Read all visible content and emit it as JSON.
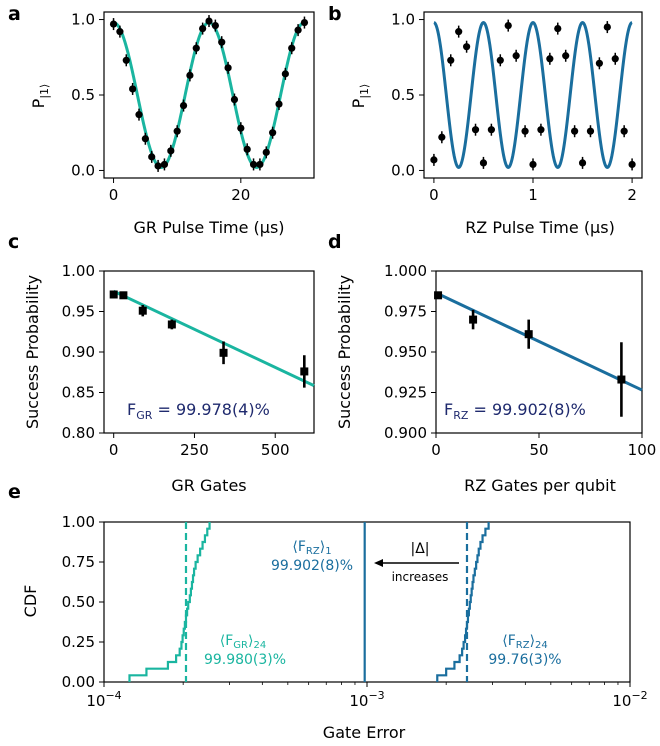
{
  "chart_data": [
    {
      "panel": "a",
      "type": "scatter",
      "xlabel": "GR Pulse Time (μs)",
      "ylabel": "P|1⟩",
      "xlim": [
        -1.5,
        31.5
      ],
      "ylim": [
        -0.05,
        1.05
      ],
      "xticks": [
        0,
        20
      ],
      "yticks": [
        0.0,
        0.5,
        1.0
      ],
      "ytick_labels": [
        "0.0",
        "0.5",
        "1.0"
      ],
      "fit_color": "#1ab5a0",
      "fit_period": 15.0,
      "data": {
        "x": [
          0,
          1,
          2,
          3,
          4,
          5,
          6,
          7,
          8,
          9,
          10,
          11,
          12,
          13,
          14,
          15,
          16,
          17,
          18,
          19,
          20,
          21,
          22,
          23,
          24,
          25,
          26,
          27,
          28,
          29,
          30
        ],
        "y": [
          0.97,
          0.92,
          0.73,
          0.54,
          0.37,
          0.21,
          0.09,
          0.03,
          0.04,
          0.13,
          0.26,
          0.43,
          0.63,
          0.81,
          0.94,
          0.99,
          0.96,
          0.85,
          0.68,
          0.47,
          0.28,
          0.14,
          0.04,
          0.04,
          0.12,
          0.25,
          0.44,
          0.64,
          0.81,
          0.93,
          0.98
        ]
      }
    },
    {
      "panel": "b",
      "type": "scatter",
      "xlabel": "RZ Pulse Time (μs)",
      "ylabel": "P|1⟩",
      "xlim": [
        -0.1,
        2.1
      ],
      "ylim": [
        -0.05,
        1.05
      ],
      "xticks": [
        0,
        1,
        2
      ],
      "yticks": [
        0.0,
        0.5,
        1.0
      ],
      "ytick_labels": [
        "0.0",
        "0.5",
        "1.0"
      ],
      "fit_color": "#1a6e9e",
      "fit_period": 0.5,
      "data": {
        "x": [
          0.0,
          0.08,
          0.17,
          0.25,
          0.33,
          0.42,
          0.5,
          0.58,
          0.67,
          0.75,
          0.83,
          0.92,
          1.0,
          1.08,
          1.17,
          1.25,
          1.33,
          1.42,
          1.5,
          1.58,
          1.67,
          1.75,
          1.83,
          1.92,
          2.0
        ],
        "y": [
          0.07,
          0.22,
          0.73,
          0.92,
          0.82,
          0.27,
          0.05,
          0.27,
          0.73,
          0.96,
          0.76,
          0.26,
          0.04,
          0.27,
          0.74,
          0.94,
          0.76,
          0.26,
          0.05,
          0.26,
          0.71,
          0.95,
          0.74,
          0.26,
          0.04
        ]
      }
    },
    {
      "panel": "c",
      "type": "scatter",
      "xlabel": "GR Gates",
      "ylabel": "Success Probability",
      "xlim": [
        -30,
        620
      ],
      "ylim": [
        0.8,
        1.0
      ],
      "xticks": [
        0,
        250,
        500
      ],
      "yticks": [
        0.8,
        0.85,
        0.9,
        0.95,
        1.0
      ],
      "ytick_labels": [
        "0.80",
        "0.85",
        "0.90",
        "0.95",
        "1.00"
      ],
      "fit_color": "#1ab5a0",
      "fit": {
        "y0": 0.975,
        "slope": -0.000188
      },
      "annotation": "F_GR = 99.978(4)%",
      "data": {
        "x": [
          0,
          30,
          90,
          180,
          340,
          590
        ],
        "y": [
          0.971,
          0.97,
          0.951,
          0.934,
          0.899,
          0.876
        ],
        "err": [
          0.004,
          0.002,
          0.007,
          0.006,
          0.014,
          0.02
        ]
      }
    },
    {
      "panel": "d",
      "type": "scatter",
      "xlabel": "RZ Gates per qubit",
      "ylabel": "Success Probability",
      "xlim": [
        0,
        100
      ],
      "ylim": [
        0.9,
        1.0
      ],
      "xticks": [
        0,
        50,
        100
      ],
      "yticks": [
        0.9,
        0.925,
        0.95,
        0.975,
        1.0
      ],
      "ytick_labels": [
        "0.900",
        "0.925",
        "0.950",
        "0.975",
        "1.000"
      ],
      "fit_color": "#1a6e9e",
      "fit": {
        "y0": 0.9865,
        "slope": -0.0006
      },
      "annotation": "F_RZ = 99.902(8)%",
      "data": {
        "x": [
          1,
          18,
          45,
          90
        ],
        "y": [
          0.985,
          0.97,
          0.961,
          0.933
        ],
        "err": [
          0.002,
          0.006,
          0.009,
          0.023
        ]
      }
    },
    {
      "panel": "e",
      "type": "line",
      "xlabel": "Gate Error",
      "ylabel": "CDF",
      "xscale": "log",
      "xlim": [
        0.0001,
        0.01
      ],
      "ylim": [
        0.0,
        1.0
      ],
      "yticks": [
        0.0,
        0.25,
        0.5,
        0.75,
        1.0
      ],
      "ytick_labels": [
        "0.00",
        "0.25",
        "0.50",
        "0.75",
        "1.00"
      ],
      "series": [
        {
          "name": "⟨F_GR⟩24",
          "value_label": "99.980(3)%",
          "color": "#1ab5a0",
          "mean": 0.000205,
          "samples": [
            0.000125,
            0.000145,
            0.000175,
            0.000188,
            0.000194,
            0.000197,
            0.000199,
            0.000201,
            0.000203,
            0.000205,
            0.000207,
            0.000209,
            0.000212,
            0.000214,
            0.000216,
            0.000218,
            0.00022,
            0.000223,
            0.000227,
            0.000232,
            0.000237,
            0.000242,
            0.000247,
            0.000252
          ]
        },
        {
          "name": "⟨F_RZ⟩24",
          "value_label": "99.76(3)%",
          "color": "#1a6e9e",
          "mean": 0.0024,
          "samples": [
            0.00185,
            0.002,
            0.00215,
            0.00225,
            0.0023,
            0.00233,
            0.00236,
            0.00238,
            0.0024,
            0.00242,
            0.00244,
            0.00246,
            0.00248,
            0.0025,
            0.00252,
            0.00254,
            0.00257,
            0.0026,
            0.00263,
            0.00266,
            0.0027,
            0.00275,
            0.00282,
            0.0029
          ]
        }
      ],
      "single_line": {
        "name": "⟨F_RZ⟩1",
        "value_label": "99.902(8)%",
        "color": "#1a6e9e",
        "x": 0.00098
      },
      "arrow_label_top": "|Δ|",
      "arrow_label_bottom": "increases"
    }
  ],
  "labels": {
    "a": "a",
    "b": "b",
    "c": "c",
    "d": "d",
    "e": "e",
    "ylabel_p_main": "P",
    "ylabel_p_sub": "|1⟩",
    "fid_c_main": "F",
    "fid_c_sub": "GR",
    "fid_c_val": " = 99.978(4)%",
    "fid_d_main": "F",
    "fid_d_sub": "RZ",
    "fid_d_val": " = 99.902(8)%",
    "e_rz1_open": "⟨F",
    "e_rz1_sub": "RZ",
    "e_rz1_close": "⟩",
    "e_rz1_idx": "1",
    "e_rz1_val": "99.902(8)%",
    "e_gr_open": "⟨F",
    "e_gr_sub": "GR",
    "e_gr_close": "⟩",
    "e_gr_idx": "24",
    "e_gr_val": "99.980(3)%",
    "e_rz_open": "⟨F",
    "e_rz_sub": "RZ",
    "e_rz_close": "⟩",
    "e_rz_idx": "24",
    "e_rz_val": "99.76(3)%",
    "e_arrow_top": "|Δ|",
    "e_arrow_bottom": "increases",
    "e_xtick_base": "10",
    "e_xtick_exp": [
      "−4",
      "−3",
      "−2"
    ],
    "xlabel_a": "GR Pulse Time (μs)",
    "xlabel_b": "RZ Pulse Time (μs)",
    "xlabel_c": "GR Gates",
    "xlabel_d": "RZ Gates per qubit",
    "xlabel_e": "Gate Error",
    "ylabel_cd": "Success Probability",
    "ylabel_e": "CDF"
  }
}
